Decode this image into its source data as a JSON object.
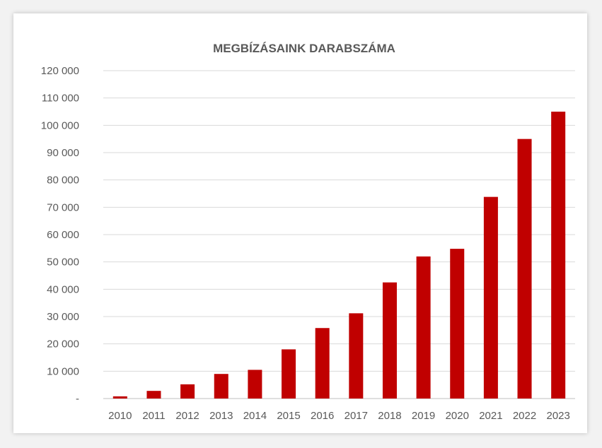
{
  "chart_data": {
    "type": "bar",
    "title": "MEGBÍZÁSAINK DARABSZÁMA",
    "xlabel": "",
    "ylabel": "",
    "categories": [
      "2010",
      "2011",
      "2012",
      "2013",
      "2014",
      "2015",
      "2016",
      "2017",
      "2018",
      "2019",
      "2020",
      "2021",
      "2022",
      "2023"
    ],
    "values": [
      800,
      2800,
      5200,
      9000,
      10500,
      18000,
      25800,
      31200,
      42500,
      52000,
      54800,
      73800,
      95000,
      105000
    ],
    "ylim": [
      0,
      120000
    ],
    "yticks": [
      0,
      10000,
      20000,
      30000,
      40000,
      50000,
      60000,
      70000,
      80000,
      90000,
      100000,
      110000,
      120000
    ],
    "ytick_labels": [
      "-",
      "10 000",
      "20 000",
      "30 000",
      "40 000",
      "50 000",
      "60 000",
      "70 000",
      "80 000",
      "90 000",
      "100 000",
      "110 000",
      "120 000"
    ],
    "grid": true,
    "legend": "none",
    "bar_color": "#c00000"
  }
}
